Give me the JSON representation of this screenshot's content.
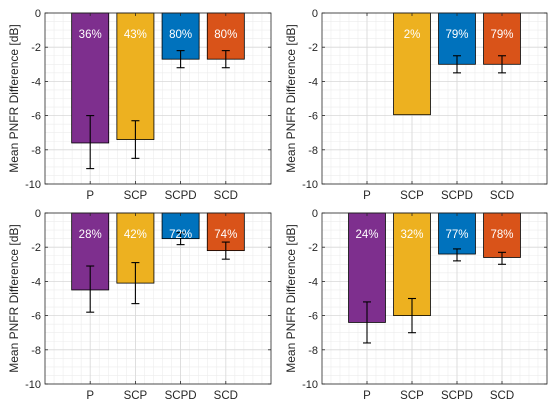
{
  "chart_data": [
    {
      "type": "bar",
      "categories": [
        "P",
        "SCP",
        "SCPD",
        "SCD"
      ],
      "ylabel": "Mean PNFR Difference [dB]",
      "ylim": [
        -10,
        0
      ],
      "yticks": [
        "0",
        "-2",
        "-4",
        "-6",
        "-8",
        "-10"
      ],
      "grid": true,
      "bars": [
        {
          "category": "P",
          "value": -7.6,
          "err_low": -9.1,
          "err_high": -6.0,
          "label": "36%",
          "color": "#7e2f8e"
        },
        {
          "category": "SCP",
          "value": -7.4,
          "err_low": -8.5,
          "err_high": -6.3,
          "label": "43%",
          "color": "#edb120"
        },
        {
          "category": "SCPD",
          "value": -2.7,
          "err_low": -3.2,
          "err_high": -2.2,
          "label": "80%",
          "color": "#0072bd"
        },
        {
          "category": "SCD",
          "value": -2.7,
          "err_low": -3.2,
          "err_high": -2.2,
          "label": "80%",
          "color": "#d95319"
        }
      ]
    },
    {
      "type": "bar",
      "categories": [
        "P",
        "SCP",
        "SCPD",
        "SCD"
      ],
      "ylabel": "Mean PNFR Difference [dB]",
      "ylim": [
        -10,
        0
      ],
      "yticks": [
        "0",
        "-2",
        "-4",
        "-6",
        "-8",
        "-10"
      ],
      "grid": true,
      "bars": [
        {
          "category": "SCP",
          "value": -5.95,
          "err_low": null,
          "err_high": null,
          "label": "2%",
          "color": "#edb120"
        },
        {
          "category": "SCPD",
          "value": -3.0,
          "err_low": -3.5,
          "err_high": -2.5,
          "label": "79%",
          "color": "#0072bd"
        },
        {
          "category": "SCD",
          "value": -3.0,
          "err_low": -3.5,
          "err_high": -2.5,
          "label": "79%",
          "color": "#d95319"
        }
      ]
    },
    {
      "type": "bar",
      "categories": [
        "P",
        "SCP",
        "SCPD",
        "SCD"
      ],
      "ylabel": "Mean PNFR Difference [dB]",
      "ylim": [
        -10,
        0
      ],
      "yticks": [
        "0",
        "-2",
        "-4",
        "-6",
        "-8",
        "-10"
      ],
      "grid": true,
      "bars": [
        {
          "category": "P",
          "value": -4.5,
          "err_low": -5.8,
          "err_high": -3.1,
          "label": "28%",
          "color": "#7e2f8e"
        },
        {
          "category": "SCP",
          "value": -4.1,
          "err_low": -5.3,
          "err_high": -2.9,
          "label": "42%",
          "color": "#edb120"
        },
        {
          "category": "SCPD",
          "value": -1.5,
          "err_low": -1.85,
          "err_high": -1.15,
          "label": "72%",
          "color": "#0072bd"
        },
        {
          "category": "SCD",
          "value": -2.2,
          "err_low": -2.7,
          "err_high": -1.7,
          "label": "74%",
          "color": "#d95319"
        }
      ]
    },
    {
      "type": "bar",
      "categories": [
        "P",
        "SCP",
        "SCPD",
        "SCD"
      ],
      "ylabel": "Mean PNFR Difference [dB]",
      "ylim": [
        -10,
        0
      ],
      "yticks": [
        "0",
        "-2",
        "-4",
        "-6",
        "-8",
        "-10"
      ],
      "grid": true,
      "bars": [
        {
          "category": "P",
          "value": -6.4,
          "err_low": -7.6,
          "err_high": -5.2,
          "label": "24%",
          "color": "#7e2f8e"
        },
        {
          "category": "SCP",
          "value": -6.0,
          "err_low": -7.0,
          "err_high": -5.0,
          "label": "32%",
          "color": "#edb120"
        },
        {
          "category": "SCPD",
          "value": -2.4,
          "err_low": -2.8,
          "err_high": -2.1,
          "label": "77%",
          "color": "#0072bd"
        },
        {
          "category": "SCD",
          "value": -2.6,
          "err_low": -3.0,
          "err_high": -2.3,
          "label": "78%",
          "color": "#d95319"
        }
      ]
    }
  ]
}
